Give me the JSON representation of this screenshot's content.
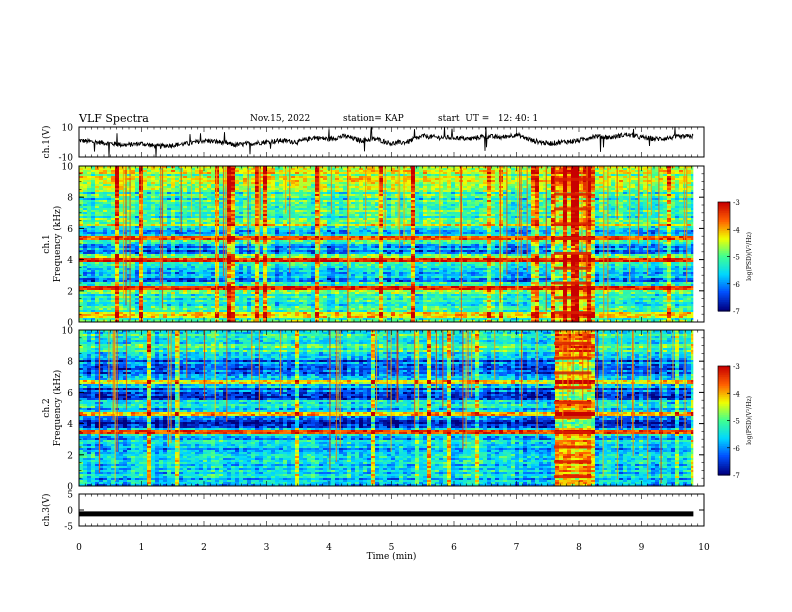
{
  "header": {
    "title": "VLF Spectra",
    "date": "Nov.15, 2022",
    "station": "station= KAP",
    "start": "start  UT =   12: 40: 1"
  },
  "chart_data": [
    {
      "type": "line",
      "panel": "ch1-waveform",
      "ylabel": "ch.1(V)",
      "ylim": [
        -10,
        10
      ],
      "yticks": [
        "10",
        "-10"
      ],
      "xlim": [
        0,
        10
      ],
      "x_end": 9.83,
      "series": [
        {
          "x": [
            0,
            0.25,
            0.5,
            0.75,
            1,
            1.25,
            1.5,
            1.75,
            2,
            2.25,
            2.5,
            2.75,
            3,
            3.25,
            3.5,
            3.75,
            4,
            4.25,
            4.5,
            4.75,
            5,
            5.25,
            5.5,
            5.75,
            6,
            6.25,
            6.5,
            6.75,
            7,
            7.25,
            7.5,
            7.75,
            8,
            8.25,
            8.5,
            8.75,
            9,
            9.25,
            9.5,
            9.83
          ],
          "values": [
            1,
            0,
            -1,
            -2,
            -1,
            -3,
            -2,
            -1,
            1,
            0,
            -2,
            -1,
            0,
            1,
            0,
            3,
            2,
            4,
            1,
            2,
            -1,
            0,
            4,
            3,
            3,
            2,
            4,
            3,
            5,
            1,
            -1,
            0,
            1,
            4,
            3,
            5,
            3,
            2,
            3,
            4
          ]
        }
      ]
    },
    {
      "type": "heatmap",
      "panel": "ch1-spectrogram",
      "ylabel_top": "ch.1",
      "ylabel": "Frequency  (kHz)",
      "xlim": [
        0,
        10
      ],
      "ylim": [
        0,
        10
      ],
      "yticks": [
        "0",
        "2",
        "4",
        "6",
        "8",
        "10"
      ],
      "background_level": -5.2,
      "bands_khz": [
        {
          "from": 0.2,
          "to": 0.6,
          "level": -4.2
        },
        {
          "from": 2.0,
          "to": 2.3,
          "level": -3.4
        },
        {
          "from": 3.8,
          "to": 4.1,
          "level": -3.3
        },
        {
          "from": 5.2,
          "to": 5.5,
          "level": -3.6
        },
        {
          "from": 6.1,
          "to": 6.3,
          "level": -4.3
        }
      ],
      "quiet_bands_khz": [
        {
          "from": 2.6,
          "to": 3.4,
          "level": -5.9
        },
        {
          "from": 4.4,
          "to": 5.0,
          "level": -6.1
        },
        {
          "from": 5.7,
          "to": 6.0,
          "level": -5.8
        }
      ],
      "burst": {
        "t_start": 7.6,
        "t_end": 8.2
      }
    },
    {
      "type": "heatmap",
      "panel": "ch2-spectrogram",
      "ylabel_top": "ch.2",
      "ylabel": "Frequency  (kHz)",
      "xlim": [
        0,
        10
      ],
      "ylim": [
        0,
        10
      ],
      "yticks": [
        "0",
        "2",
        "4",
        "6",
        "8",
        "10"
      ],
      "background_level": -5.7,
      "bands_khz": [
        {
          "from": 3.3,
          "to": 3.6,
          "level": -3.4
        },
        {
          "from": 4.5,
          "to": 4.7,
          "level": -4.1
        },
        {
          "from": 6.6,
          "to": 6.8,
          "level": -4.3
        }
      ],
      "quiet_bands_khz": [
        {
          "from": 3.7,
          "to": 4.3,
          "level": -6.5
        },
        {
          "from": 5.5,
          "to": 6.3,
          "level": -6.3
        },
        {
          "from": 7.0,
          "to": 8.2,
          "level": -6.1
        }
      ],
      "burst": {
        "t_start": 7.6,
        "t_end": 8.2
      }
    },
    {
      "type": "line",
      "panel": "ch3-waveform",
      "ylabel": "ch.3(V)",
      "ylim": [
        -5,
        5
      ],
      "yticks": [
        "5",
        "0",
        "-5"
      ],
      "xlim": [
        0,
        10
      ],
      "xlabel": "Time  (min)",
      "xticks": [
        "0",
        "1",
        "2",
        "3",
        "4",
        "5",
        "6",
        "7",
        "8",
        "9",
        "10"
      ],
      "series": [
        {
          "x": [
            0,
            9.83
          ],
          "values": [
            -1.2,
            -1.2
          ]
        }
      ]
    }
  ],
  "colorbar": {
    "label": "log(PSD)(V²/Hz)",
    "ticks": [
      "-3",
      "-4",
      "-5",
      "-6",
      "-7"
    ],
    "range": [
      -7,
      -3
    ],
    "colors": [
      "#000080",
      "#0050ff",
      "#00d8ff",
      "#40ff90",
      "#f0ff00",
      "#ff6000",
      "#c80000"
    ]
  }
}
